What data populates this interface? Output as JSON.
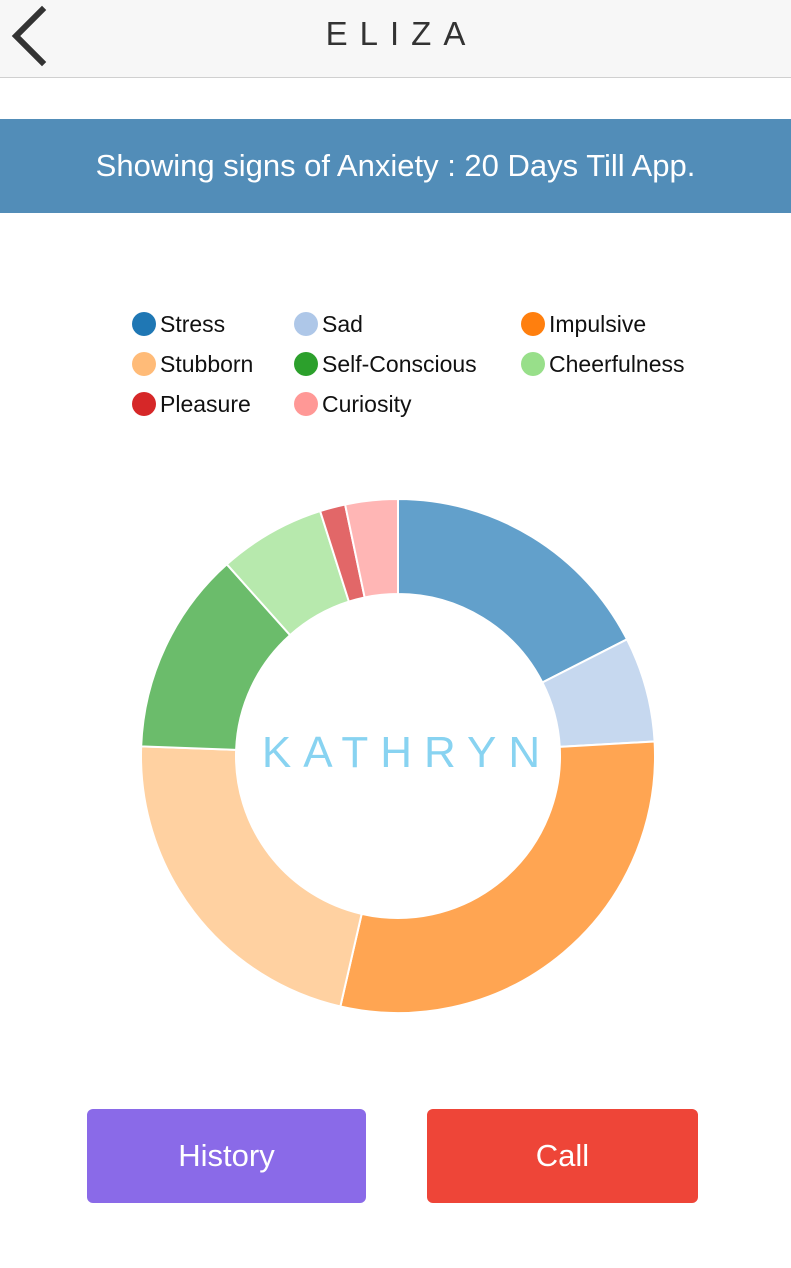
{
  "nav": {
    "title": "ELIZA",
    "back_icon": "chevron-left-icon"
  },
  "banner": {
    "text": "Showing signs of Anxiety : 20 Days Till App."
  },
  "chart_data": {
    "type": "pie",
    "variant": "donut",
    "center_label": "KATHRYN",
    "legend_position": "top",
    "categories": [
      "Stress",
      "Sad",
      "Impulsive",
      "Stubborn",
      "Self-Conscious",
      "Cheerfulness",
      "Pleasure",
      "Curiosity"
    ],
    "values": [
      17.5,
      6.6,
      29.5,
      22.0,
      12.8,
      6.7,
      1.6,
      3.3
    ],
    "legend_colors": [
      "#1f77b4",
      "#aec7e8",
      "#ff7f0e",
      "#ffbb78",
      "#2ca02c",
      "#98df8a",
      "#d62728",
      "#ff9896"
    ],
    "slice_colors": [
      "#62a0cb",
      "#c6d8ef",
      "#ffa552",
      "#ffd1a1",
      "#6bbc6b",
      "#b7e9ad",
      "#e26768",
      "#ffb6b5"
    ]
  },
  "buttons": {
    "history": "History",
    "call": "Call"
  },
  "colors": {
    "banner": "#528db8",
    "history_button": "#8a6ae8",
    "call_button": "#ee4538",
    "center_label": "#88d3f1"
  }
}
